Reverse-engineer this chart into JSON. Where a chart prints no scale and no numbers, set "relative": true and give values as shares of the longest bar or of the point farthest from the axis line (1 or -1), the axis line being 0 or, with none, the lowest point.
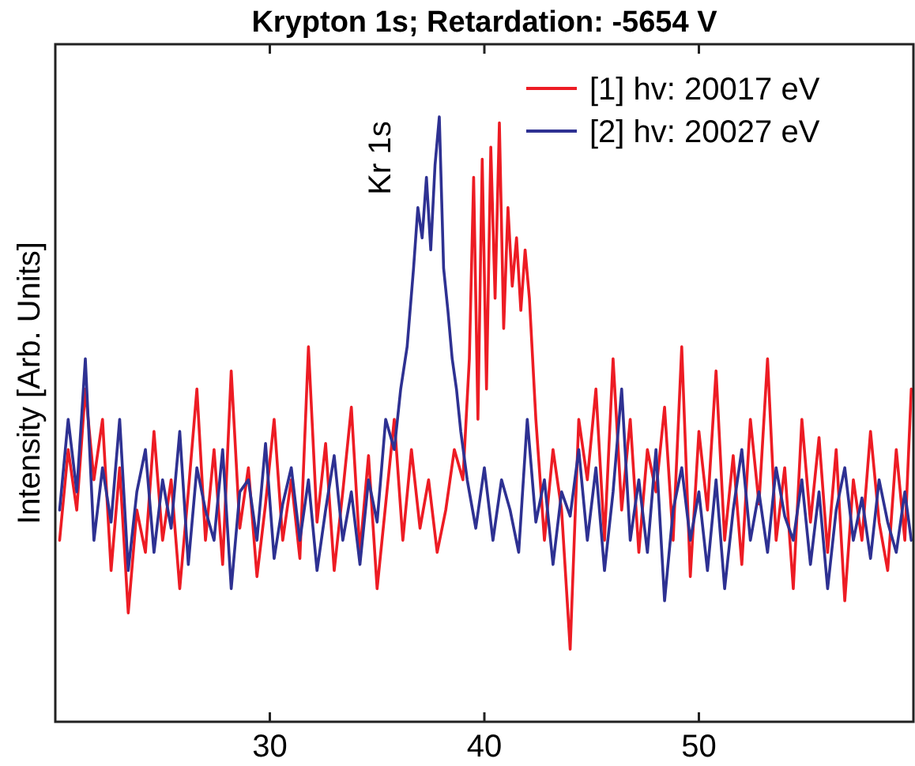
{
  "chart_data": {
    "type": "line",
    "title": "Krypton 1s; Retardation: -5654 V",
    "ylabel": "Intensity [Arb. Units]",
    "relative": true,
    "xlim": [
      20,
      60
    ],
    "xticks": [
      30,
      40,
      50
    ],
    "legend": "top right",
    "grid": false,
    "marker": "none",
    "line_style": "solid",
    "annotations": [
      "Kr 1s"
    ],
    "series": [
      {
        "name": "[1] hv: 20017 eV",
        "color": "#ed1c24",
        "x": [
          20.2,
          20.6,
          21.0,
          21.4,
          21.8,
          22.2,
          22.6,
          23.0,
          23.4,
          23.8,
          24.2,
          24.6,
          25.0,
          25.4,
          25.8,
          26.2,
          26.6,
          27.0,
          27.4,
          27.8,
          28.2,
          28.6,
          29.0,
          29.4,
          29.8,
          30.2,
          30.6,
          31.0,
          31.4,
          31.8,
          32.2,
          32.6,
          33.0,
          33.4,
          33.8,
          34.2,
          34.6,
          35.0,
          35.4,
          35.8,
          36.2,
          36.6,
          37.0,
          37.4,
          37.8,
          38.2,
          38.6,
          39.0,
          39.3,
          39.5,
          39.7,
          39.9,
          40.1,
          40.3,
          40.5,
          40.7,
          40.9,
          41.1,
          41.3,
          41.5,
          41.7,
          41.9,
          42.1,
          42.4,
          42.8,
          43.2,
          43.6,
          44.0,
          44.4,
          44.8,
          45.2,
          45.6,
          46.0,
          46.4,
          46.8,
          47.2,
          47.6,
          48.0,
          48.4,
          48.8,
          49.2,
          49.6,
          50.0,
          50.4,
          50.8,
          51.2,
          51.6,
          52.0,
          52.4,
          52.8,
          53.2,
          53.6,
          54.0,
          54.4,
          54.8,
          55.2,
          55.6,
          56.0,
          56.4,
          56.8,
          57.2,
          57.6,
          58.0,
          58.4,
          58.8,
          59.2,
          59.6,
          59.9
        ],
        "values": [
          0.3,
          0.45,
          0.35,
          0.55,
          0.4,
          0.5,
          0.25,
          0.42,
          0.18,
          0.35,
          0.28,
          0.48,
          0.3,
          0.4,
          0.22,
          0.38,
          0.55,
          0.3,
          0.45,
          0.26,
          0.58,
          0.32,
          0.42,
          0.24,
          0.36,
          0.5,
          0.3,
          0.4,
          0.27,
          0.62,
          0.33,
          0.46,
          0.25,
          0.38,
          0.52,
          0.28,
          0.44,
          0.22,
          0.36,
          0.5,
          0.3,
          0.45,
          0.32,
          0.4,
          0.28,
          0.35,
          0.45,
          0.4,
          0.6,
          0.9,
          0.5,
          0.93,
          0.55,
          0.95,
          0.7,
          0.99,
          0.65,
          0.85,
          0.72,
          0.8,
          0.68,
          0.78,
          0.7,
          0.5,
          0.3,
          0.45,
          0.35,
          0.12,
          0.5,
          0.4,
          0.55,
          0.3,
          0.6,
          0.35,
          0.5,
          0.28,
          0.45,
          0.38,
          0.52,
          0.3,
          0.62,
          0.24,
          0.48,
          0.35,
          0.58,
          0.3,
          0.44,
          0.26,
          0.5,
          0.36,
          0.6,
          0.3,
          0.42,
          0.22,
          0.5,
          0.33,
          0.47,
          0.28,
          0.45,
          0.2,
          0.4,
          0.3,
          0.48,
          0.33,
          0.25,
          0.45,
          0.3,
          0.55
        ]
      },
      {
        "name": "[2] hv: 20027 eV",
        "color": "#2e3192",
        "x": [
          20.2,
          20.6,
          21.0,
          21.4,
          21.8,
          22.2,
          22.6,
          23.0,
          23.4,
          23.8,
          24.2,
          24.6,
          25.0,
          25.4,
          25.8,
          26.2,
          26.6,
          27.0,
          27.4,
          27.8,
          28.2,
          28.6,
          29.0,
          29.4,
          29.8,
          30.2,
          30.6,
          31.0,
          31.4,
          31.8,
          32.2,
          32.6,
          33.0,
          33.4,
          33.8,
          34.2,
          34.6,
          35.0,
          35.4,
          35.8,
          36.1,
          36.4,
          36.7,
          36.9,
          37.1,
          37.3,
          37.5,
          37.7,
          37.9,
          38.1,
          38.3,
          38.5,
          38.7,
          38.9,
          39.2,
          39.6,
          40.0,
          40.4,
          40.8,
          41.2,
          41.6,
          42.0,
          42.4,
          42.8,
          43.2,
          43.6,
          44.0,
          44.4,
          44.8,
          45.2,
          45.6,
          46.0,
          46.4,
          46.8,
          47.2,
          47.6,
          48.0,
          48.4,
          48.8,
          49.2,
          49.6,
          50.0,
          50.4,
          50.8,
          51.2,
          51.6,
          52.0,
          52.4,
          52.8,
          53.2,
          53.6,
          54.0,
          54.4,
          54.8,
          55.2,
          55.6,
          56.0,
          56.4,
          56.8,
          57.2,
          57.6,
          58.0,
          58.4,
          58.8,
          59.2,
          59.6,
          59.9
        ],
        "values": [
          0.35,
          0.5,
          0.38,
          0.6,
          0.3,
          0.42,
          0.33,
          0.5,
          0.25,
          0.38,
          0.45,
          0.28,
          0.4,
          0.32,
          0.48,
          0.26,
          0.42,
          0.35,
          0.3,
          0.45,
          0.22,
          0.38,
          0.4,
          0.3,
          0.46,
          0.27,
          0.36,
          0.42,
          0.3,
          0.4,
          0.25,
          0.35,
          0.44,
          0.3,
          0.38,
          0.26,
          0.4,
          0.33,
          0.5,
          0.45,
          0.55,
          0.62,
          0.75,
          0.85,
          0.8,
          0.9,
          0.78,
          0.92,
          1.0,
          0.75,
          0.68,
          0.6,
          0.55,
          0.48,
          0.4,
          0.32,
          0.42,
          0.3,
          0.4,
          0.35,
          0.28,
          0.5,
          0.33,
          0.4,
          0.26,
          0.38,
          0.34,
          0.45,
          0.3,
          0.42,
          0.25,
          0.38,
          0.55,
          0.3,
          0.4,
          0.28,
          0.45,
          0.2,
          0.35,
          0.42,
          0.3,
          0.38,
          0.25,
          0.4,
          0.22,
          0.35,
          0.45,
          0.3,
          0.38,
          0.28,
          0.42,
          0.34,
          0.3,
          0.4,
          0.26,
          0.38,
          0.22,
          0.35,
          0.42,
          0.3,
          0.37,
          0.27,
          0.4,
          0.33,
          0.28,
          0.38,
          0.3
        ]
      }
    ]
  }
}
